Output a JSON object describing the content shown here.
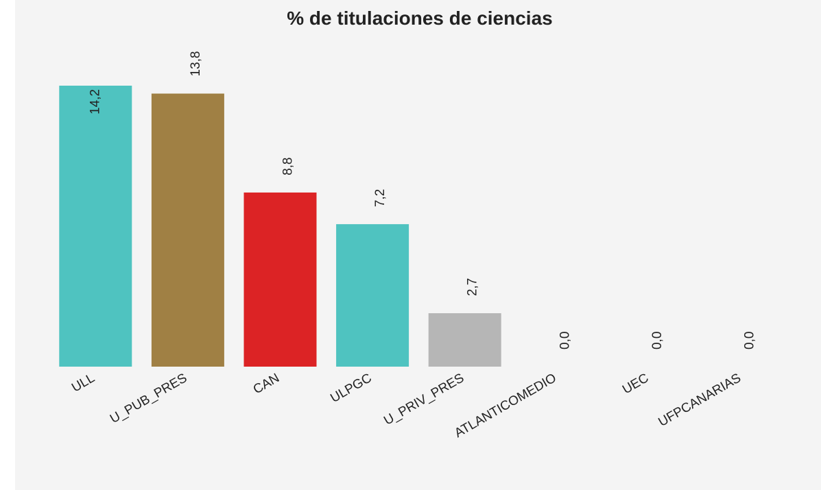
{
  "chart_data": {
    "type": "bar",
    "title": "% de titulaciones de ciencias",
    "categories": [
      "ULL",
      "U_PUB_PRES",
      "CAN",
      "ULPGC",
      "U_PRIV_PRES",
      "ATLANTICOMEDIO",
      "UEC",
      "UFPCANARIAS"
    ],
    "values": [
      14.2,
      13.8,
      8.8,
      7.2,
      2.7,
      0,
      0,
      0
    ],
    "value_labels": [
      "14,2",
      "13,8",
      "8,8",
      "7,2",
      "2,7",
      "0,0",
      "0,0",
      "0,0"
    ],
    "colors": [
      "#4fc3c0",
      "#a08044",
      "#dc2325",
      "#4fc3c0",
      "#b6b6b6",
      "#b6b6b6",
      "#b6b6b6",
      "#b6b6b6"
    ]
  }
}
